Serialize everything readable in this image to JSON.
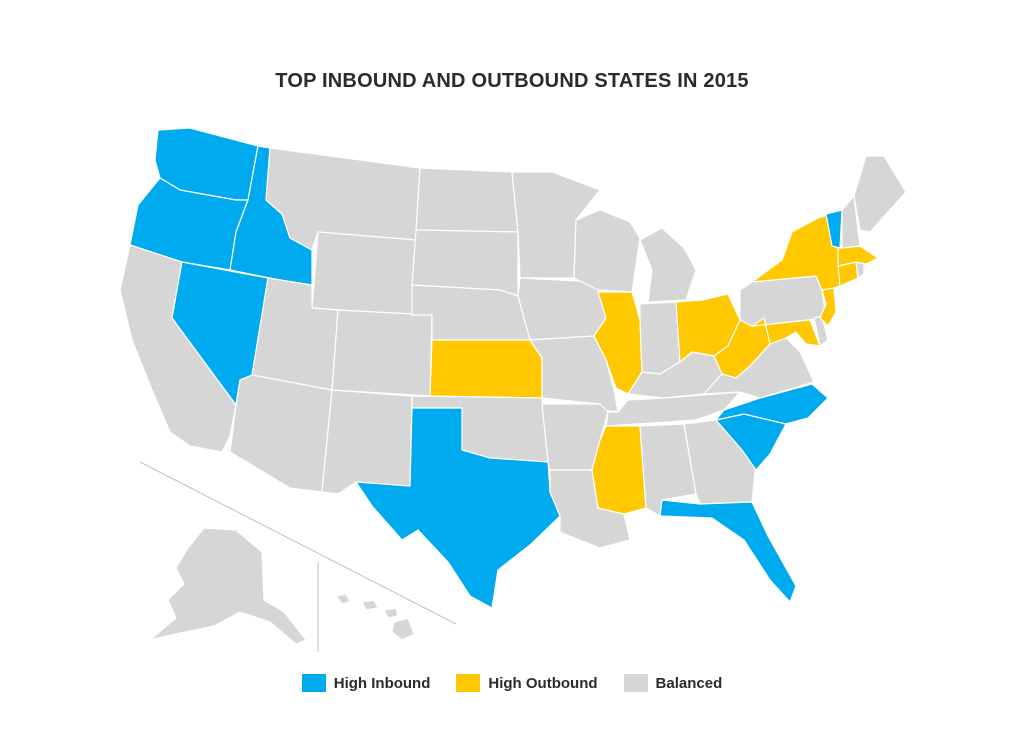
{
  "title": "TOP INBOUND AND OUTBOUND STATES IN 2015",
  "colors": {
    "inbound": "#00aaee",
    "outbound": "#ffc800",
    "balanced": "#d6d6d6",
    "separator": "#c0c0c0"
  },
  "legend": [
    {
      "label": "High Inbound",
      "category": "inbound"
    },
    {
      "label": "High Outbound",
      "category": "outbound"
    },
    {
      "label": "Balanced",
      "category": "balanced"
    }
  ],
  "states": {
    "WA": "inbound",
    "OR": "inbound",
    "ID": "inbound",
    "NV": "inbound",
    "TX": "inbound",
    "NC": "inbound",
    "SC": "inbound",
    "FL": "inbound",
    "VT": "inbound",
    "NY": "outbound",
    "MA": "outbound",
    "CT": "outbound",
    "NJ": "outbound",
    "MD": "outbound",
    "WV": "outbound",
    "OH": "outbound",
    "IL": "outbound",
    "KS": "outbound",
    "MS": "outbound",
    "CA": "balanced",
    "MT": "balanced",
    "WY": "balanced",
    "UT": "balanced",
    "CO": "balanced",
    "AZ": "balanced",
    "NM": "balanced",
    "ND": "balanced",
    "SD": "balanced",
    "NE": "balanced",
    "OK": "balanced",
    "MN": "balanced",
    "IA": "balanced",
    "MO": "balanced",
    "AR": "balanced",
    "LA": "balanced",
    "WI": "balanced",
    "MI": "balanced",
    "IN": "balanced",
    "KY": "balanced",
    "TN": "balanced",
    "AL": "balanced",
    "GA": "balanced",
    "VA": "balanced",
    "PA": "balanced",
    "DE": "balanced",
    "NH": "balanced",
    "ME": "balanced",
    "RI": "balanced",
    "AK": "balanced",
    "HI": "balanced"
  }
}
